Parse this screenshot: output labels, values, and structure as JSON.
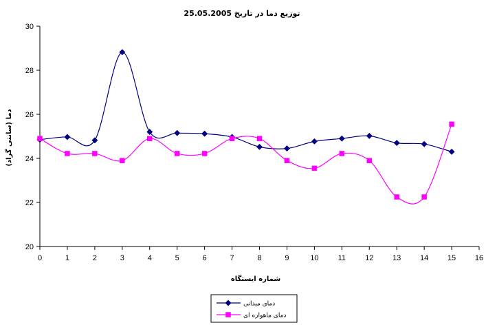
{
  "chart_data": {
    "type": "line",
    "title": "توزیع دما در تاریخ 25.05.2005",
    "xlabel": "شماره ایستگاه",
    "ylabel": "دما (سانتی گراد)",
    "xlim": [
      0,
      16
    ],
    "ylim": [
      20,
      30
    ],
    "x_ticks": [
      "0",
      "1",
      "2",
      "3",
      "4",
      "5",
      "6",
      "7",
      "8",
      "9",
      "10",
      "11",
      "12",
      "13",
      "14",
      "15",
      "16"
    ],
    "y_ticks": [
      "20",
      "22",
      "24",
      "26",
      "28",
      "30"
    ],
    "x": [
      0,
      1,
      2,
      3,
      4,
      5,
      6,
      7,
      8,
      9,
      10,
      11,
      12,
      13,
      14,
      15
    ],
    "grid": false,
    "smooth": true,
    "legend_position": "bottom-center",
    "series": [
      {
        "name": "دمای میدانی",
        "color": "#000080",
        "marker": "diamond",
        "values": [
          24.85,
          24.97,
          24.82,
          28.82,
          25.2,
          25.15,
          25.12,
          24.97,
          24.52,
          24.45,
          24.77,
          24.9,
          25.02,
          24.7,
          24.65,
          24.3
        ]
      },
      {
        "name": "دمای ماهواره ای",
        "color": "#ff00ff",
        "marker": "square",
        "values": [
          24.9,
          24.22,
          24.22,
          23.9,
          24.9,
          24.22,
          24.22,
          24.9,
          24.9,
          23.9,
          23.55,
          24.22,
          23.9,
          22.25,
          22.25,
          25.55
        ]
      }
    ]
  }
}
